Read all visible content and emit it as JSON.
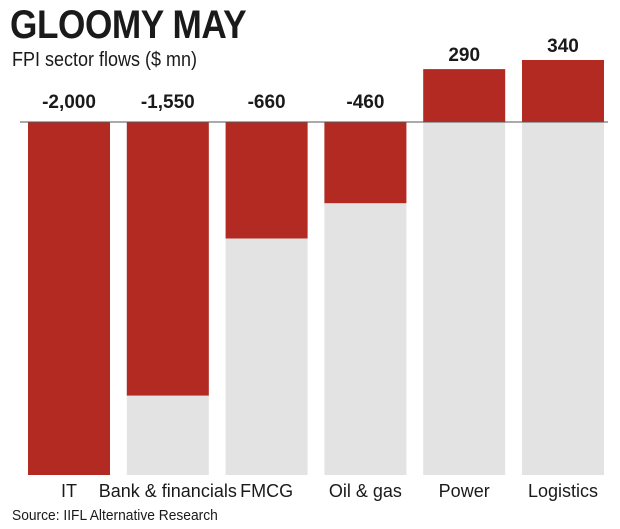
{
  "title": "GLOOMY MAY",
  "subtitle": "FPI sector flows ($ mn)",
  "source": "Source: IIFL Alternative Research",
  "colors": {
    "bar": "#b22a22",
    "track": "#e3e3e3",
    "zero_line": "#555555"
  },
  "chart_data": {
    "type": "bar",
    "title": "GLOOMY MAY",
    "subtitle": "FPI sector flows ($ mn)",
    "categories": [
      "IT",
      "Bank & financials",
      "FMCG",
      "Oil & gas",
      "Power",
      "Logistics"
    ],
    "values": [
      -2000,
      -1550,
      -660,
      -460,
      290,
      340
    ],
    "value_labels": [
      "-2,000",
      "-1,550",
      "-660",
      "-460",
      "290",
      "340"
    ],
    "ylim": [
      -2000,
      340
    ],
    "xlabel": "",
    "ylabel": "",
    "grid": false,
    "legend": "none"
  }
}
